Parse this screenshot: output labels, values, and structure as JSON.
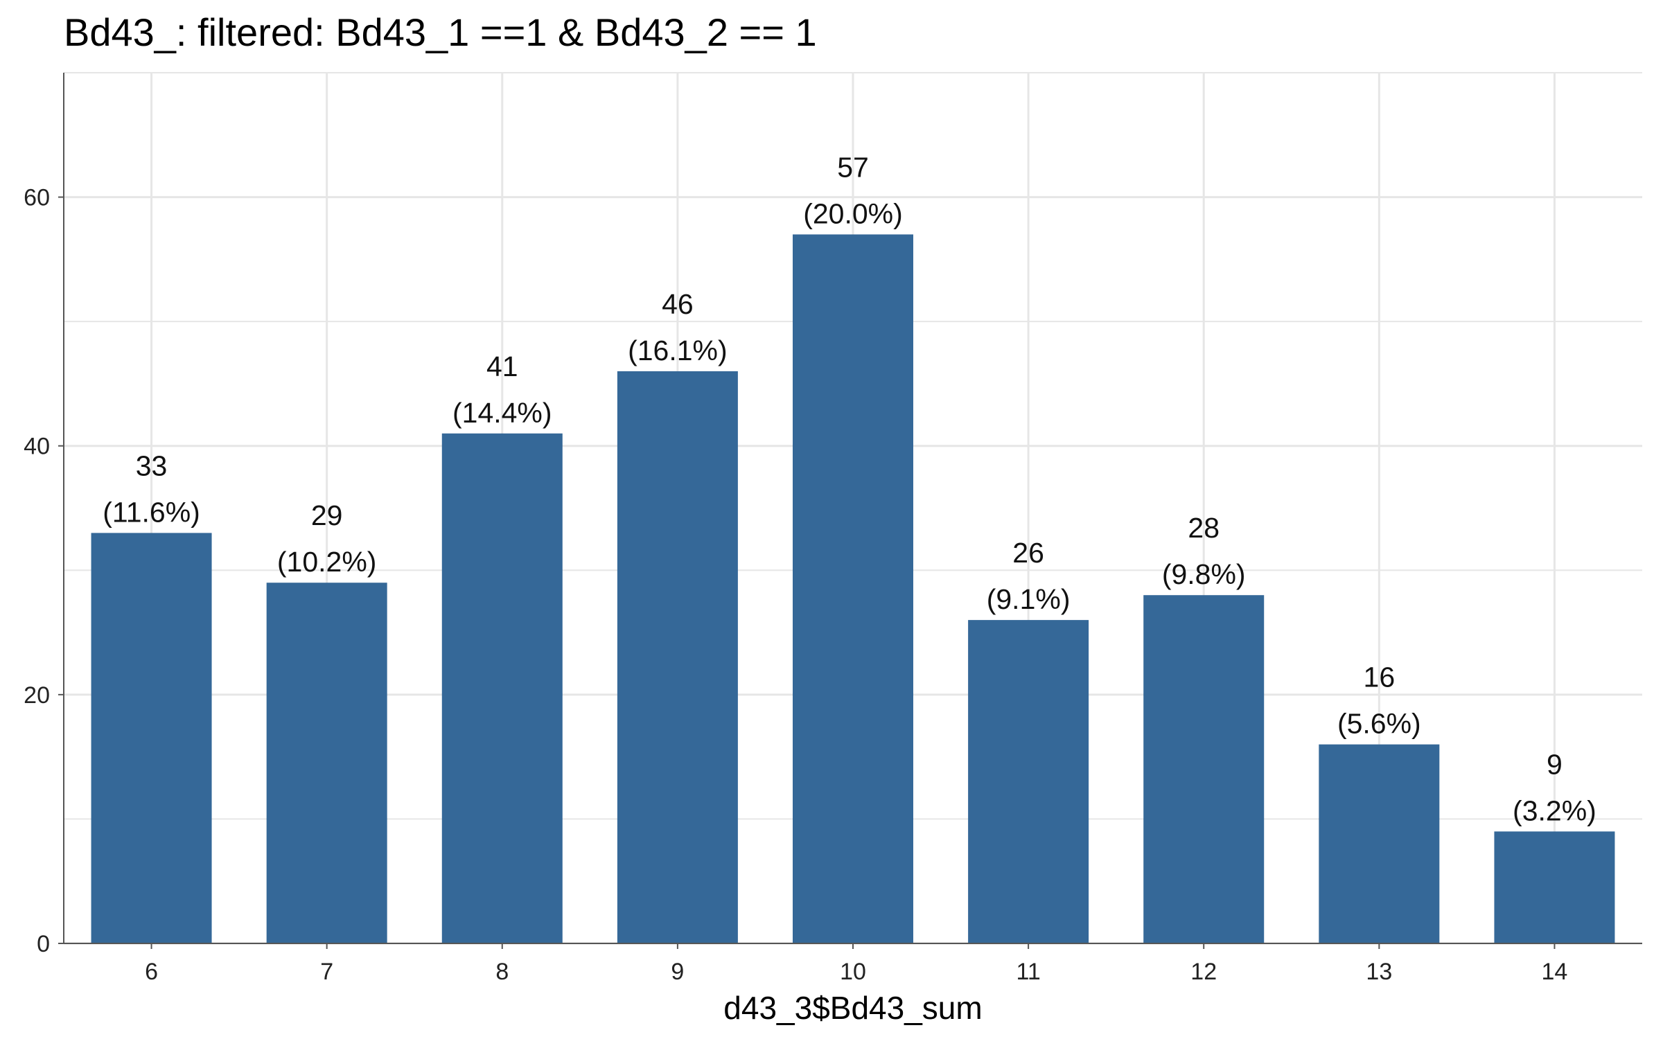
{
  "chart_data": {
    "type": "bar",
    "title": "Bd43_: filtered: Bd43_1 ==1 & Bd43_2 == 1",
    "xlabel": "d43_3$Bd43_sum",
    "ylabel": "",
    "categories": [
      "6",
      "7",
      "8",
      "9",
      "10",
      "11",
      "12",
      "13",
      "14"
    ],
    "values": [
      33,
      29,
      41,
      46,
      57,
      26,
      28,
      16,
      9
    ],
    "labels": [
      "(11.6%)",
      "(10.2%)",
      "(14.4%)",
      "(16.1%)",
      "(20.0%)",
      "(9.1%)",
      "(9.8%)",
      "(5.6%)",
      "(3.2%)"
    ],
    "ylim": [
      0,
      70
    ],
    "yticks": [
      "0",
      "20",
      "40",
      "60"
    ],
    "grid": true,
    "legend": "none"
  },
  "colors": {
    "bar": "#356898",
    "grid": "#e6e6e6",
    "axis": "#555555"
  }
}
